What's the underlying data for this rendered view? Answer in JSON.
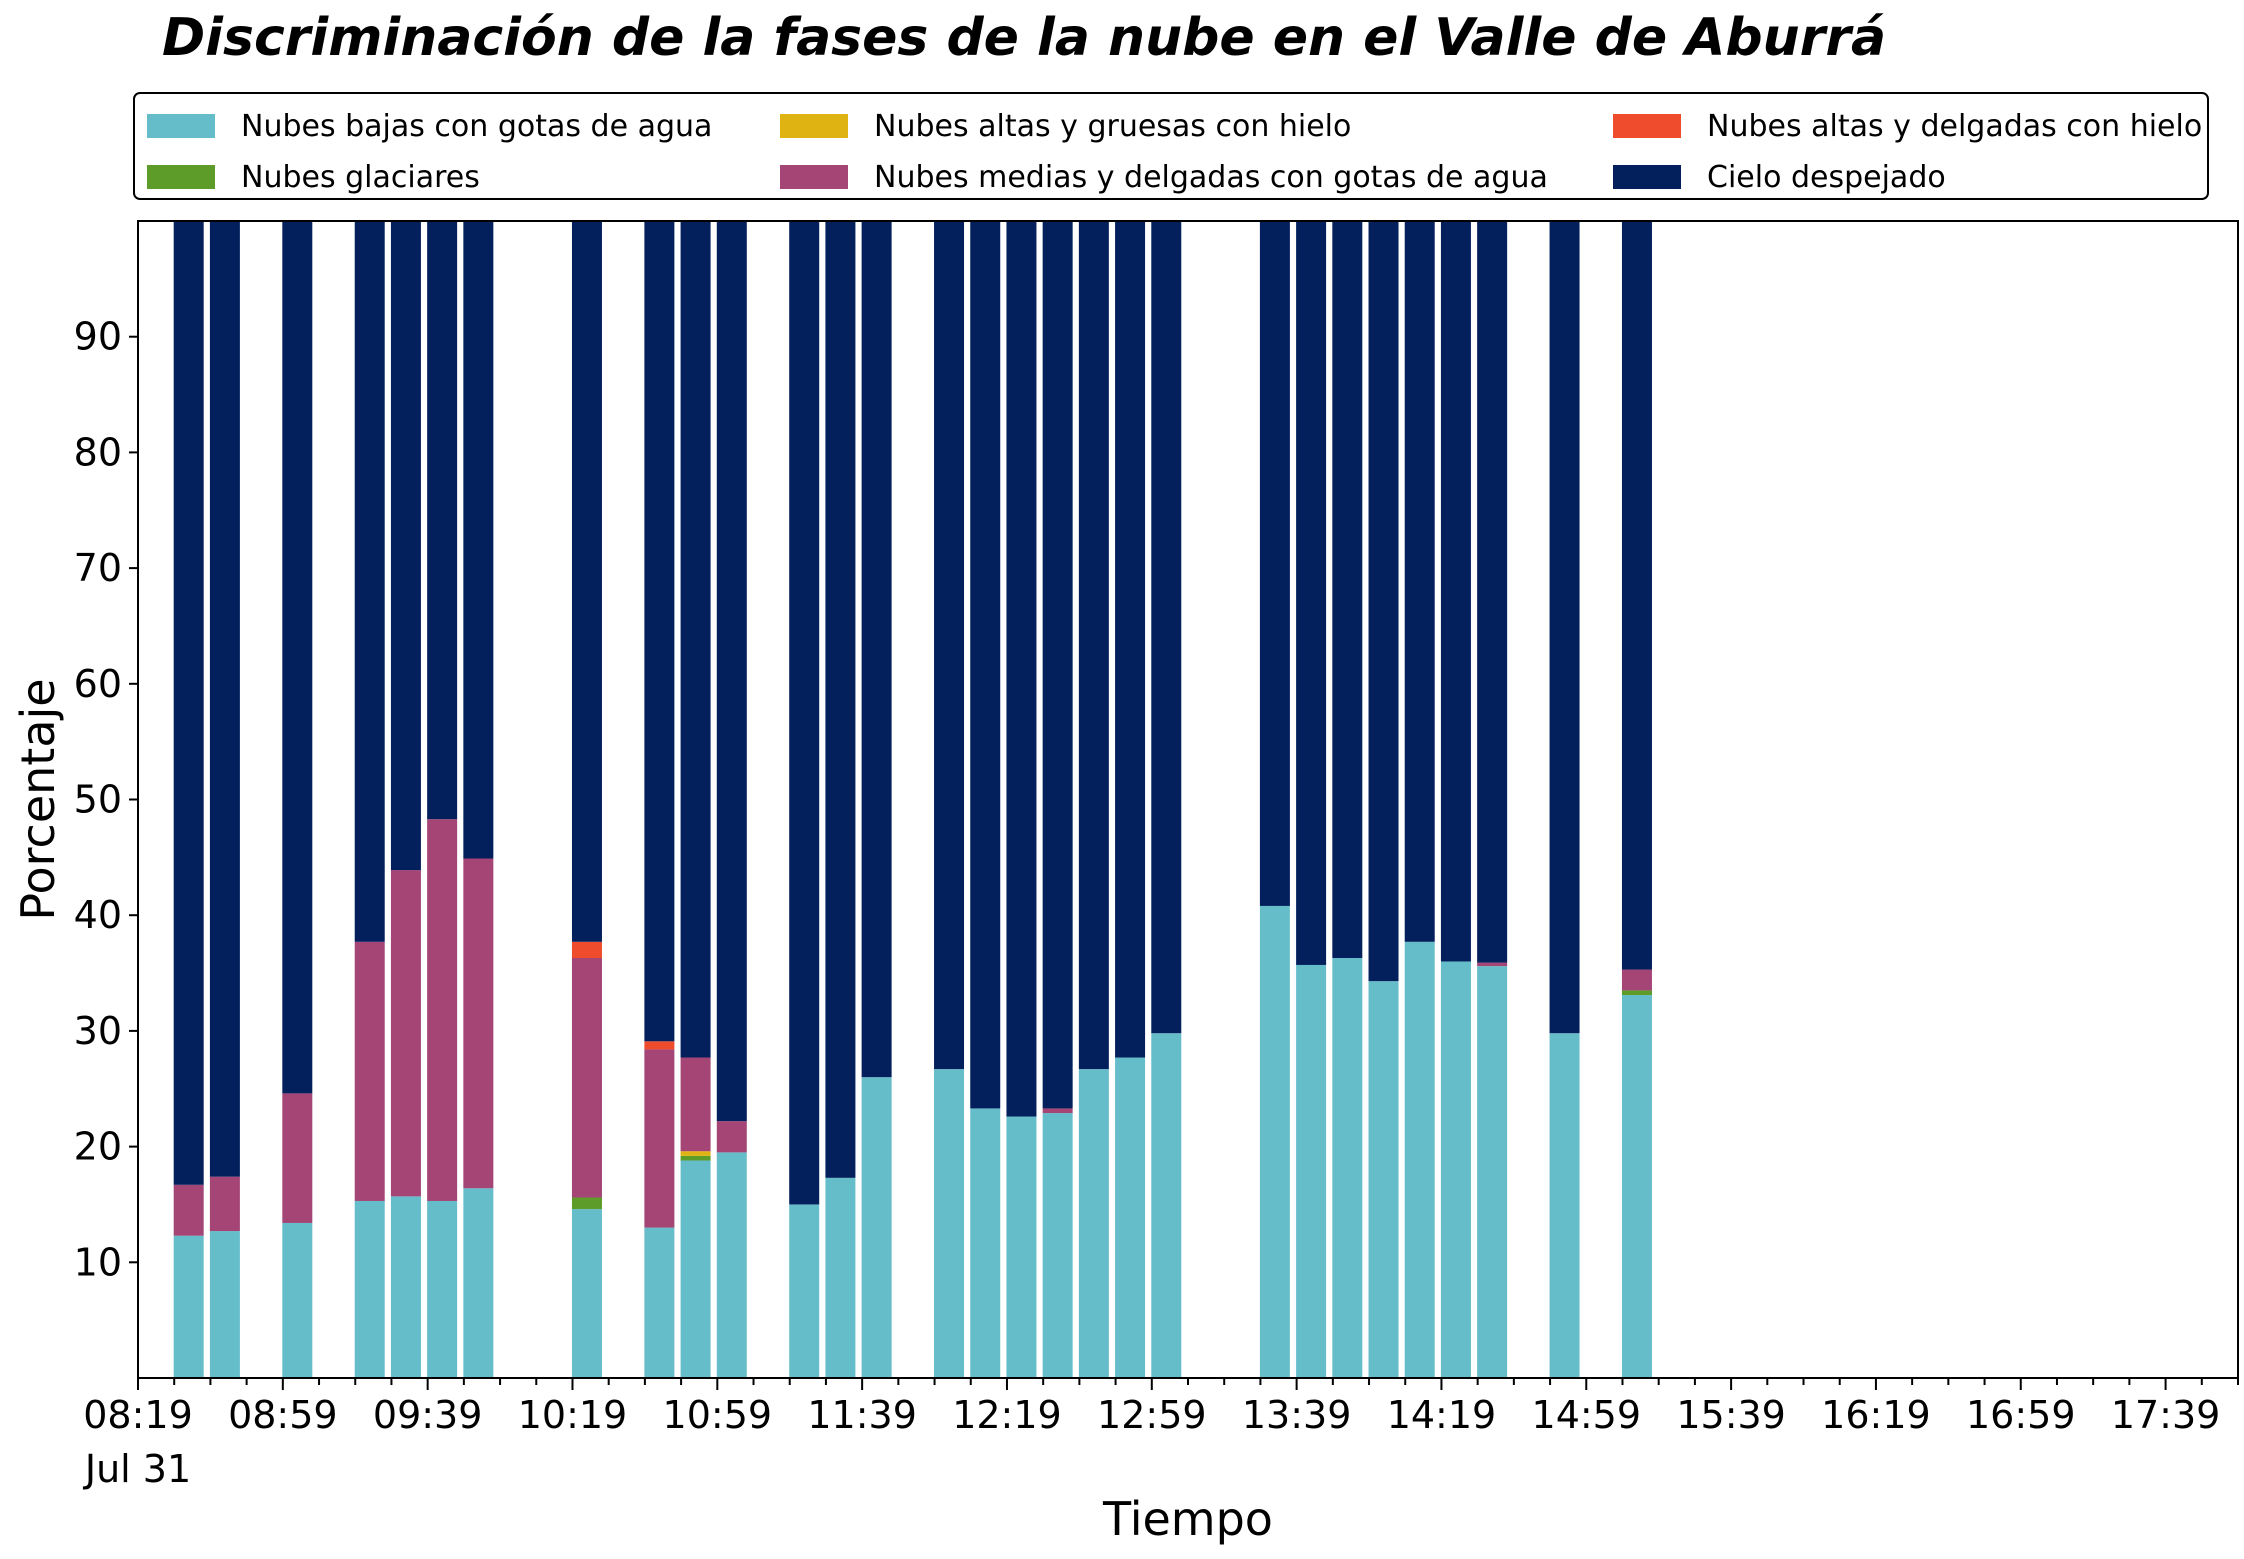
{
  "chart_data": {
    "type": "bar",
    "stacked": true,
    "title": "Discriminación de la fases de la nube en el Valle de Aburrá",
    "xlabel": "Tiempo",
    "ylabel": "Porcentaje",
    "x_ticks": [
      "08:19",
      "08:59",
      "09:39",
      "10:19",
      "10:59",
      "11:39",
      "12:19",
      "12:59",
      "13:39",
      "14:19",
      "14:59",
      "15:39",
      "16:19",
      "16:59",
      "17:39"
    ],
    "x_date_label": "Jul 31",
    "y_ticks": [
      10,
      20,
      30,
      40,
      50,
      60,
      70,
      80,
      90
    ],
    "ylim": [
      0,
      100
    ],
    "legend_position": "top",
    "x": [
      "08:33",
      "08:43",
      "09:03",
      "09:23",
      "09:33",
      "09:43",
      "09:53",
      "10:23",
      "10:43",
      "10:53",
      "11:03",
      "11:23",
      "11:33",
      "11:43",
      "12:03",
      "12:13",
      "12:23",
      "12:33",
      "12:43",
      "12:53",
      "13:03",
      "13:33",
      "13:43",
      "13:53",
      "14:03",
      "14:13",
      "14:23",
      "14:33",
      "14:53",
      "15:13"
    ],
    "series": [
      {
        "name": "Nubes bajas con gotas de agua",
        "color": "#66bdca",
        "values": [
          12.3,
          12.7,
          13.4,
          15.3,
          15.7,
          15.3,
          16.4,
          14.6,
          13.0,
          18.8,
          19.5,
          15.0,
          17.3,
          26.0,
          26.7,
          23.3,
          22.6,
          22.9,
          26.7,
          27.7,
          29.8,
          40.8,
          35.7,
          36.3,
          34.3,
          37.7,
          36.0,
          35.6,
          29.8,
          33.1
        ]
      },
      {
        "name": "Nubes glaciares",
        "color": "#5e9c2a",
        "values": [
          0,
          0,
          0,
          0,
          0,
          0,
          0,
          1.0,
          0,
          0.4,
          0,
          0,
          0,
          0,
          0,
          0,
          0,
          0,
          0,
          0,
          0,
          0,
          0,
          0,
          0,
          0,
          0,
          0,
          0,
          0.4
        ]
      },
      {
        "name": "Nubes altas y gruesas con hielo",
        "color": "#dfb312",
        "values": [
          0,
          0,
          0,
          0,
          0,
          0,
          0,
          0,
          0,
          0.4,
          0,
          0,
          0,
          0,
          0,
          0,
          0,
          0,
          0,
          0,
          0,
          0,
          0,
          0,
          0,
          0,
          0,
          0,
          0,
          0
        ]
      },
      {
        "name": "Nubes medias y delgadas con gotas de agua",
        "color": "#a44576",
        "values": [
          4.4,
          4.7,
          11.2,
          22.4,
          28.2,
          33.0,
          28.5,
          20.7,
          15.4,
          8.1,
          2.7,
          0,
          0,
          0,
          0,
          0,
          0,
          0.4,
          0,
          0,
          0,
          0,
          0,
          0,
          0,
          0,
          0,
          0.3,
          0,
          1.8
        ]
      },
      {
        "name": "Nubes altas y delgadas con hielo",
        "color": "#ef4c2d",
        "values": [
          0,
          0,
          0,
          0,
          0,
          0,
          0,
          1.4,
          0.7,
          0,
          0,
          0,
          0,
          0,
          0,
          0,
          0,
          0,
          0,
          0,
          0,
          0,
          0,
          0,
          0,
          0,
          0,
          0,
          0,
          0
        ]
      },
      {
        "name": "Cielo despejado",
        "color": "#03205d",
        "values": [
          83.3,
          82.6,
          75.4,
          62.3,
          56.1,
          51.7,
          55.1,
          62.3,
          70.9,
          72.3,
          77.8,
          85.0,
          82.7,
          74.0,
          73.3,
          76.7,
          77.4,
          76.7,
          73.3,
          72.3,
          70.2,
          59.2,
          64.3,
          63.7,
          65.7,
          62.3,
          64.0,
          64.1,
          70.2,
          64.7
        ]
      }
    ]
  }
}
